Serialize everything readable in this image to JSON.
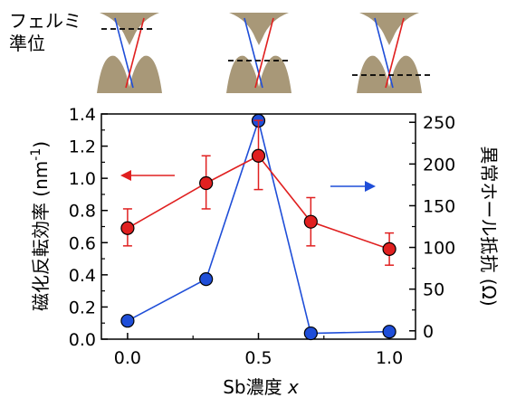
{
  "inset": {
    "label_line1": "フェルミ",
    "label_line2": "準位",
    "cone_color": "#a89878",
    "fermi_levels": [
      "above",
      "middle",
      "below"
    ]
  },
  "chart_data": {
    "type": "line",
    "x_axis": {
      "label_prefix": "Sb濃度 ",
      "label_var": "x",
      "ticks": [
        "0.0",
        "0.5",
        "1.0"
      ],
      "range": [
        -0.1,
        1.1
      ]
    },
    "y_left": {
      "label_main": "磁化反転効率 (nm",
      "label_exp": "-1",
      "label_close": ")",
      "range": [
        0,
        1.4
      ],
      "ticks": [
        "0.0",
        "0.2",
        "0.4",
        "0.6",
        "0.8",
        "1.0",
        "1.2",
        "1.4"
      ]
    },
    "y_right": {
      "label": "異常ホール抵抗 (Ω)",
      "range": [
        -10,
        260
      ],
      "ticks": [
        "0",
        "50",
        "100",
        "150",
        "200",
        "250"
      ]
    },
    "series": [
      {
        "axis": "left",
        "color": "#e02020",
        "x": [
          0.0,
          0.3,
          0.5,
          0.7,
          1.0
        ],
        "y": [
          0.69,
          0.97,
          1.14,
          0.73,
          0.56
        ],
        "err_low": [
          0.11,
          0.16,
          0.21,
          0.15,
          0.1
        ],
        "err_high": [
          0.12,
          0.17,
          0.22,
          0.15,
          0.1
        ]
      },
      {
        "axis": "right",
        "color": "#1f4ed8",
        "x": [
          0.0,
          0.3,
          0.5,
          0.7,
          1.0
        ],
        "y": [
          12,
          62,
          252,
          -3,
          -1
        ]
      }
    ],
    "arrows": {
      "left_color": "#e02020",
      "right_color": "#1f4ed8"
    }
  }
}
